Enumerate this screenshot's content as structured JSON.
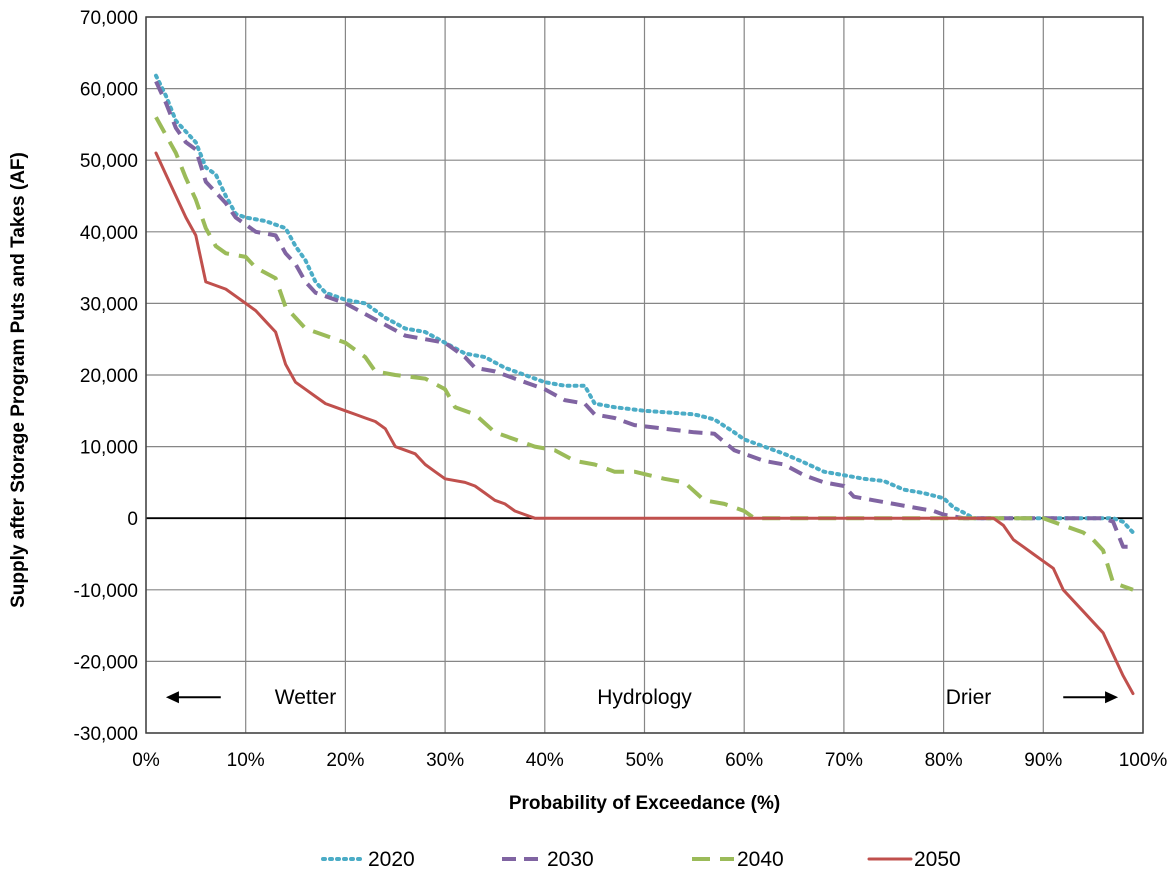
{
  "chart_data": {
    "type": "line",
    "xlabel": "Probability of Exceedance (%)",
    "ylabel": "Supply after Storage Program Puts and Takes  (AF)",
    "xlim": [
      0,
      100
    ],
    "ylim": [
      -30000,
      70000
    ],
    "x_ticks": [
      0,
      10,
      20,
      30,
      40,
      50,
      60,
      70,
      80,
      90,
      100
    ],
    "x_tick_labels": [
      "0%",
      "10%",
      "20%",
      "30%",
      "40%",
      "50%",
      "60%",
      "70%",
      "80%",
      "90%",
      "100%"
    ],
    "y_ticks": [
      -30000,
      -20000,
      -10000,
      0,
      10000,
      20000,
      30000,
      40000,
      50000,
      60000,
      70000
    ],
    "y_tick_labels": [
      "-30,000",
      "-20,000",
      "-10,000",
      "0",
      "10,000",
      "20,000",
      "30,000",
      "40,000",
      "50,000",
      "60,000",
      "70,000"
    ],
    "grid": true,
    "legend_position": "bottom",
    "annotations": [
      {
        "id": "wetter",
        "text": "Wetter",
        "x": 16,
        "y": -25000,
        "arrow": "left",
        "arrow_x": [
          7.5,
          2
        ]
      },
      {
        "id": "hydrology",
        "text": "Hydrology",
        "x": 50,
        "y": -25000
      },
      {
        "id": "drier",
        "text": "Drier",
        "x": 82.5,
        "y": -25000,
        "arrow": "right",
        "arrow_x": [
          92,
          97.5
        ]
      }
    ],
    "series": [
      {
        "name": "2020",
        "color": "#4bacc6",
        "dash": "dotted",
        "points": [
          [
            1,
            61800
          ],
          [
            2,
            59000
          ],
          [
            3,
            55500
          ],
          [
            4,
            54000
          ],
          [
            5,
            52500
          ],
          [
            6,
            49000
          ],
          [
            7,
            48000
          ],
          [
            8,
            45000
          ],
          [
            9,
            42500
          ],
          [
            10,
            42000
          ],
          [
            12,
            41500
          ],
          [
            14,
            40500
          ],
          [
            15,
            38000
          ],
          [
            16,
            36000
          ],
          [
            17,
            33000
          ],
          [
            18,
            31500
          ],
          [
            20,
            30500
          ],
          [
            22,
            30000
          ],
          [
            24,
            28000
          ],
          [
            26,
            26500
          ],
          [
            28,
            26000
          ],
          [
            30,
            24500
          ],
          [
            32,
            23000
          ],
          [
            34,
            22500
          ],
          [
            36,
            21000
          ],
          [
            38,
            20000
          ],
          [
            40,
            19000
          ],
          [
            42,
            18500
          ],
          [
            44,
            18500
          ],
          [
            45,
            16000
          ],
          [
            47,
            15500
          ],
          [
            50,
            15000
          ],
          [
            52,
            14800
          ],
          [
            55,
            14500
          ],
          [
            57,
            13800
          ],
          [
            59,
            12000
          ],
          [
            60,
            11000
          ],
          [
            62,
            10000
          ],
          [
            64,
            9000
          ],
          [
            66,
            7800
          ],
          [
            68,
            6500
          ],
          [
            70,
            6000
          ],
          [
            72,
            5500
          ],
          [
            74,
            5200
          ],
          [
            76,
            4000
          ],
          [
            78,
            3500
          ],
          [
            80,
            2800
          ],
          [
            81,
            1500
          ],
          [
            82,
            800
          ],
          [
            83,
            0
          ],
          [
            86,
            0
          ],
          [
            90,
            0
          ],
          [
            95,
            0
          ],
          [
            97,
            0
          ],
          [
            98,
            -500
          ],
          [
            99,
            -2000
          ]
        ]
      },
      {
        "name": "2030",
        "color": "#8064a2",
        "dash": "dashed",
        "points": [
          [
            1,
            61000
          ],
          [
            2,
            58000
          ],
          [
            3,
            54500
          ],
          [
            4,
            52500
          ],
          [
            5,
            51500
          ],
          [
            6,
            47000
          ],
          [
            7,
            45500
          ],
          [
            8,
            44000
          ],
          [
            9,
            42000
          ],
          [
            10,
            41000
          ],
          [
            11,
            40000
          ],
          [
            13,
            39500
          ],
          [
            14,
            37000
          ],
          [
            15,
            35500
          ],
          [
            16,
            33000
          ],
          [
            17,
            31500
          ],
          [
            18,
            31000
          ],
          [
            20,
            30000
          ],
          [
            22,
            28500
          ],
          [
            24,
            27000
          ],
          [
            26,
            25500
          ],
          [
            28,
            25000
          ],
          [
            30,
            24500
          ],
          [
            32,
            22500
          ],
          [
            33,
            21000
          ],
          [
            35,
            20500
          ],
          [
            37,
            19500
          ],
          [
            40,
            18000
          ],
          [
            42,
            16500
          ],
          [
            44,
            16000
          ],
          [
            45,
            14500
          ],
          [
            47,
            14000
          ],
          [
            49,
            13000
          ],
          [
            52,
            12500
          ],
          [
            55,
            12000
          ],
          [
            57,
            11800
          ],
          [
            59,
            9500
          ],
          [
            60,
            9000
          ],
          [
            62,
            8000
          ],
          [
            64,
            7500
          ],
          [
            66,
            6000
          ],
          [
            68,
            5000
          ],
          [
            70,
            4500
          ],
          [
            71,
            3000
          ],
          [
            73,
            2500
          ],
          [
            75,
            2000
          ],
          [
            77,
            1500
          ],
          [
            79,
            1000
          ],
          [
            80,
            500
          ],
          [
            82,
            0
          ],
          [
            85,
            0
          ],
          [
            90,
            0
          ],
          [
            95,
            0
          ],
          [
            96,
            0
          ],
          [
            97,
            -500
          ],
          [
            98,
            -4000
          ],
          [
            99,
            -4000
          ]
        ]
      },
      {
        "name": "2040",
        "color": "#9bbb59",
        "dash": "long-dash",
        "points": [
          [
            1,
            56000
          ],
          [
            2,
            53500
          ],
          [
            3,
            51000
          ],
          [
            4,
            47500
          ],
          [
            5,
            44500
          ],
          [
            6,
            40500
          ],
          [
            7,
            38000
          ],
          [
            8,
            37000
          ],
          [
            10,
            36500
          ],
          [
            11,
            35000
          ],
          [
            13,
            33500
          ],
          [
            14,
            29500
          ],
          [
            16,
            26500
          ],
          [
            18,
            25500
          ],
          [
            20,
            24500
          ],
          [
            22,
            22500
          ],
          [
            23,
            20500
          ],
          [
            25,
            20000
          ],
          [
            28,
            19500
          ],
          [
            30,
            18000
          ],
          [
            31,
            15500
          ],
          [
            33,
            14500
          ],
          [
            35,
            12000
          ],
          [
            37,
            11000
          ],
          [
            39,
            10000
          ],
          [
            41,
            9500
          ],
          [
            43,
            8000
          ],
          [
            45,
            7500
          ],
          [
            47,
            6500
          ],
          [
            49,
            6500
          ],
          [
            52,
            5500
          ],
          [
            54,
            5000
          ],
          [
            56,
            2500
          ],
          [
            58,
            2000
          ],
          [
            60,
            1000
          ],
          [
            61,
            0
          ],
          [
            65,
            0
          ],
          [
            70,
            0
          ],
          [
            80,
            0
          ],
          [
            88,
            0
          ],
          [
            90,
            0
          ],
          [
            92,
            -1000
          ],
          [
            94,
            -2000
          ],
          [
            95,
            -3000
          ],
          [
            96,
            -4500
          ],
          [
            97,
            -9000
          ],
          [
            98,
            -9500
          ],
          [
            99,
            -10000
          ]
        ]
      },
      {
        "name": "2050",
        "color": "#c0504d",
        "dash": "solid",
        "points": [
          [
            1,
            51000
          ],
          [
            2,
            48000
          ],
          [
            3,
            45000
          ],
          [
            4,
            42000
          ],
          [
            5,
            39500
          ],
          [
            6,
            33000
          ],
          [
            7,
            32500
          ],
          [
            8,
            32000
          ],
          [
            9,
            31000
          ],
          [
            10,
            30000
          ],
          [
            11,
            29000
          ],
          [
            12,
            27500
          ],
          [
            13,
            26000
          ],
          [
            14,
            21500
          ],
          [
            15,
            19000
          ],
          [
            16,
            18000
          ],
          [
            17,
            17000
          ],
          [
            18,
            16000
          ],
          [
            19,
            15500
          ],
          [
            20,
            15000
          ],
          [
            21,
            14500
          ],
          [
            22,
            14000
          ],
          [
            23,
            13500
          ],
          [
            24,
            12500
          ],
          [
            25,
            10000
          ],
          [
            26,
            9500
          ],
          [
            27,
            9000
          ],
          [
            28,
            7500
          ],
          [
            29,
            6500
          ],
          [
            30,
            5500
          ],
          [
            32,
            5000
          ],
          [
            33,
            4500
          ],
          [
            34,
            3500
          ],
          [
            35,
            2500
          ],
          [
            36,
            2000
          ],
          [
            37,
            1000
          ],
          [
            38,
            500
          ],
          [
            39,
            0
          ],
          [
            40,
            0
          ],
          [
            50,
            0
          ],
          [
            60,
            0
          ],
          [
            70,
            0
          ],
          [
            80,
            0
          ],
          [
            85,
            0
          ],
          [
            86,
            -1000
          ],
          [
            87,
            -3000
          ],
          [
            88,
            -4000
          ],
          [
            89,
            -5000
          ],
          [
            90,
            -6000
          ],
          [
            91,
            -7000
          ],
          [
            92,
            -10000
          ],
          [
            94,
            -13000
          ],
          [
            96,
            -16000
          ],
          [
            97,
            -19000
          ],
          [
            98,
            -22000
          ],
          [
            99,
            -24500
          ]
        ]
      }
    ]
  }
}
